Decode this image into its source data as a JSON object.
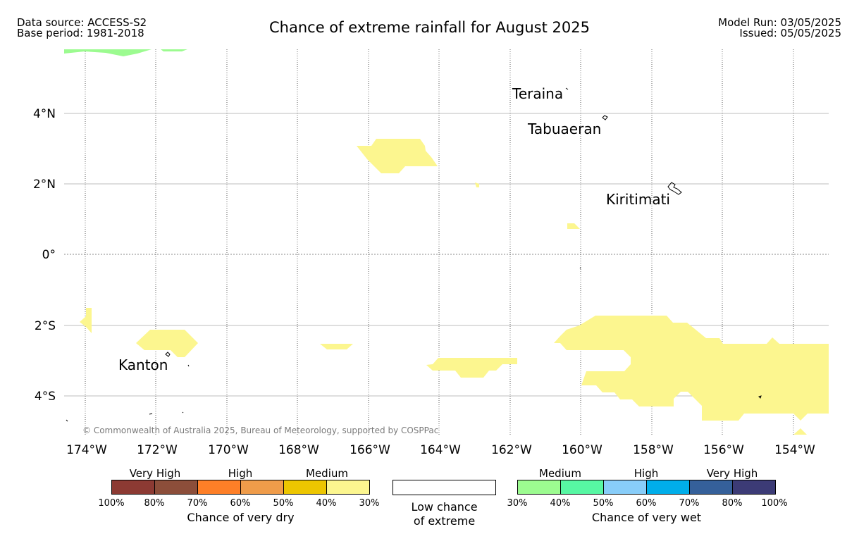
{
  "header": {
    "source": "Data source: ACCESS-S2",
    "base": "Base period: 1981-2018",
    "title": "Chance of extreme rainfall for August 2025",
    "model_run": "Model Run: 03/05/2025",
    "issued": "Issued: 05/05/2025"
  },
  "map": {
    "lon_ticks": [
      "174°W",
      "172°W",
      "170°W",
      "168°W",
      "166°W",
      "164°W",
      "162°W",
      "160°W",
      "158°W",
      "156°W",
      "154°W"
    ],
    "lat_ticks": [
      "4°N",
      "2°N",
      "0°",
      "2°S",
      "4°S"
    ],
    "place_names": [
      "Teraina",
      "Tabuaeran",
      "Kiritimati",
      "Kanton"
    ],
    "copyright": "© Commonwealth of Australia 2025, Bureau of Meteorology, supported by COSPPac",
    "dry_fill_color": "#fcf68f",
    "wet_fill_color": "#9cfb90"
  },
  "legend": {
    "dry": {
      "categories": [
        "Very High",
        "High",
        "Medium"
      ],
      "ticks": [
        "100%",
        "80%",
        "70%",
        "60%",
        "50%",
        "40%",
        "30%"
      ],
      "colors": [
        "#8c3a33",
        "#8c4e3a",
        "#fe7f27",
        "#ef9c4a",
        "#edc600",
        "#fcf68f"
      ],
      "label": "Chance of very dry"
    },
    "low": {
      "line1": "Low chance",
      "line2": "of extreme"
    },
    "wet": {
      "categories": [
        "Medium",
        "High",
        "Very High"
      ],
      "ticks": [
        "30%",
        "40%",
        "50%",
        "60%",
        "70%",
        "80%",
        "100%"
      ],
      "colors": [
        "#9cfb90",
        "#57f7a3",
        "#88cdf9",
        "#00aeea",
        "#35609a",
        "#3c3b76"
      ],
      "label": "Chance of very wet"
    }
  }
}
